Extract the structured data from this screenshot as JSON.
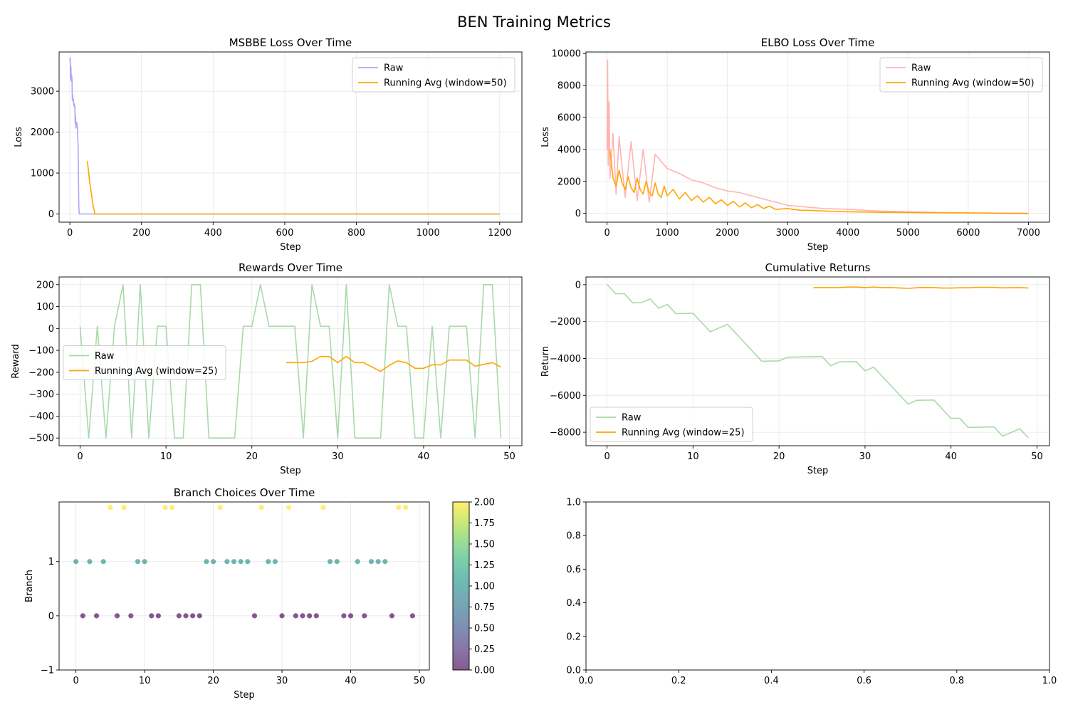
{
  "suptitle": "BEN Training Metrics",
  "colors": {
    "raw_blue": "#8c8cf0",
    "avg": "#ffa500",
    "raw_red": "#ff8c8c",
    "raw_green": "#8ccc8c",
    "grid": "#e6e6e6",
    "viridis": [
      "#440154",
      "#21918c",
      "#fde725"
    ]
  },
  "chart_data": [
    {
      "type": "line",
      "title": "MSBBE Loss Over Time",
      "xlabel": "Step",
      "ylabel": "Loss",
      "xlim": [
        -30,
        1262
      ],
      "ylim": [
        -200,
        3960
      ],
      "xticks": [
        0,
        200,
        400,
        600,
        800,
        1000,
        1200
      ],
      "yticks": [
        0,
        1000,
        2000,
        3000
      ],
      "legend": "upper right",
      "grid": true,
      "series": [
        {
          "name": "Raw",
          "color": "#8c8cf0",
          "opacity": 0.75,
          "x": [
            0,
            1,
            2,
            3,
            4,
            5,
            6,
            7,
            8,
            9,
            10,
            11,
            12,
            13,
            14,
            15,
            16,
            17,
            18,
            19,
            20,
            21,
            22,
            23,
            24,
            25,
            26,
            1200
          ],
          "y": [
            3750,
            3820,
            3300,
            3600,
            3250,
            3400,
            3300,
            2800,
            2900,
            2750,
            2800,
            2650,
            2700,
            2600,
            2650,
            2200,
            2400,
            2100,
            2250,
            2150,
            2200,
            2100,
            1800,
            1700,
            900,
            200,
            0,
            0
          ]
        },
        {
          "name": "Running Avg (window=50)",
          "color": "#ffa500",
          "opacity": 1,
          "x": [
            49,
            55,
            60,
            65,
            70,
            1200
          ],
          "y": [
            1300,
            800,
            500,
            200,
            0,
            0
          ]
        }
      ]
    },
    {
      "type": "line",
      "title": "ELBO Loss Over Time",
      "xlabel": "Step",
      "ylabel": "Loss",
      "xlim": [
        -350,
        7350
      ],
      "ylim": [
        -550,
        10100
      ],
      "xticks": [
        0,
        1000,
        2000,
        3000,
        4000,
        5000,
        6000,
        7000
      ],
      "yticks": [
        0,
        2000,
        4000,
        6000,
        8000,
        10000
      ],
      "legend": "upper right",
      "grid": true,
      "series": [
        {
          "name": "Raw",
          "color": "#ff8c8c",
          "opacity": 0.65,
          "x": [
            0,
            10,
            20,
            35,
            50,
            100,
            150,
            200,
            300,
            400,
            500,
            600,
            700,
            800,
            1000,
            1200,
            1400,
            1600,
            1800,
            2000,
            2200,
            2400,
            2600,
            2800,
            3000,
            3300,
            3600,
            4000,
            4500,
            5000,
            5500,
            6000,
            6500,
            7000
          ],
          "y": [
            4000,
            9600,
            3000,
            7000,
            2200,
            5000,
            1200,
            4800,
            1000,
            4500,
            800,
            4000,
            700,
            3700,
            2800,
            2500,
            2100,
            1900,
            1600,
            1400,
            1300,
            1100,
            900,
            700,
            500,
            400,
            300,
            250,
            150,
            100,
            60,
            40,
            20,
            10
          ]
        },
        {
          "name": "Running Avg (window=50)",
          "color": "#ffa500",
          "opacity": 1,
          "x": [
            49,
            100,
            150,
            200,
            250,
            300,
            350,
            400,
            450,
            500,
            550,
            600,
            650,
            700,
            750,
            800,
            850,
            900,
            950,
            1000,
            1100,
            1200,
            1300,
            1400,
            1500,
            1600,
            1700,
            1800,
            1900,
            2000,
            2100,
            2200,
            2300,
            2400,
            2500,
            2600,
            2700,
            2800,
            3000,
            3200,
            3400,
            3600,
            3800,
            4000,
            4500,
            5000,
            5500,
            6000,
            6500,
            7000
          ],
          "y": [
            4000,
            2200,
            1700,
            2700,
            1900,
            1500,
            2300,
            1600,
            1300,
            2200,
            1500,
            1200,
            2000,
            1300,
            1100,
            1900,
            1200,
            1000,
            1700,
            1100,
            1500,
            900,
            1300,
            800,
            1100,
            700,
            1000,
            600,
            850,
            500,
            750,
            400,
            650,
            350,
            550,
            300,
            450,
            250,
            300,
            200,
            180,
            150,
            120,
            100,
            70,
            50,
            30,
            20,
            0,
            -20
          ]
        }
      ]
    },
    {
      "type": "line",
      "title": "Rewards Over Time",
      "xlabel": "Step",
      "ylabel": "Reward",
      "xlim": [
        -2.45,
        51.45
      ],
      "ylim": [
        -535,
        235
      ],
      "xticks": [
        0,
        10,
        20,
        30,
        40,
        50
      ],
      "yticks": [
        -500,
        -400,
        -300,
        -200,
        -100,
        0,
        100,
        200
      ],
      "legend": "center left",
      "grid": true,
      "series": [
        {
          "name": "Raw",
          "color": "#8ccc8c",
          "opacity": 0.75,
          "x": [
            0,
            1,
            2,
            3,
            4,
            5,
            6,
            7,
            8,
            9,
            10,
            11,
            12,
            13,
            14,
            15,
            16,
            17,
            18,
            19,
            20,
            21,
            22,
            23,
            24,
            25,
            26,
            27,
            28,
            29,
            30,
            31,
            32,
            33,
            34,
            35,
            36,
            37,
            38,
            39,
            40,
            41,
            42,
            43,
            44,
            45,
            46,
            47,
            48,
            49
          ],
          "y": [
            10,
            -500,
            10,
            -500,
            10,
            200,
            -500,
            200,
            -500,
            10,
            10,
            -500,
            -500,
            200,
            200,
            -500,
            -500,
            -500,
            -500,
            10,
            10,
            200,
            10,
            10,
            10,
            10,
            -500,
            200,
            10,
            10,
            -500,
            200,
            -500,
            -500,
            -500,
            -500,
            200,
            10,
            10,
            -500,
            -500,
            10,
            -500,
            10,
            10,
            10,
            -500,
            200,
            200,
            -500
          ]
        },
        {
          "name": "Running Avg (window=25)",
          "color": "#ffa500",
          "opacity": 1,
          "x": [
            24,
            25,
            26,
            27,
            28,
            29,
            30,
            31,
            32,
            33,
            34,
            35,
            36,
            37,
            38,
            39,
            40,
            41,
            42,
            43,
            44,
            45,
            46,
            47,
            48,
            49
          ],
          "y": [
            -156,
            -156,
            -156,
            -150,
            -128,
            -128,
            -156,
            -128,
            -156,
            -156,
            -176,
            -196,
            -168,
            -148,
            -156,
            -182,
            -182,
            -166,
            -166,
            -144,
            -144,
            -144,
            -172,
            -164,
            -156,
            -176
          ]
        }
      ]
    },
    {
      "type": "line",
      "title": "Cumulative Returns",
      "xlabel": "Step",
      "ylabel": "Return",
      "xlim": [
        -2.45,
        51.45
      ],
      "ylim": [
        -8730,
        420
      ],
      "xticks": [
        0,
        10,
        20,
        30,
        40,
        50
      ],
      "yticks": [
        -8000,
        -6000,
        -4000,
        -2000,
        0
      ],
      "legend": "lower left",
      "grid": true,
      "series": [
        {
          "name": "Raw",
          "color": "#8ccc8c",
          "opacity": 0.75,
          "x": [
            0,
            1,
            2,
            3,
            4,
            5,
            6,
            7,
            8,
            9,
            10,
            11,
            12,
            13,
            14,
            15,
            16,
            17,
            18,
            19,
            20,
            21,
            22,
            23,
            24,
            25,
            26,
            27,
            28,
            29,
            30,
            31,
            32,
            33,
            34,
            35,
            36,
            37,
            38,
            39,
            40,
            41,
            42,
            43,
            44,
            45,
            46,
            47,
            48,
            49
          ],
          "y": [
            10,
            -490,
            -480,
            -980,
            -970,
            -770,
            -1270,
            -1070,
            -1570,
            -1560,
            -1550,
            -2050,
            -2550,
            -2350,
            -2150,
            -2650,
            -3150,
            -3650,
            -4150,
            -4140,
            -4130,
            -3930,
            -3920,
            -3910,
            -3900,
            -3890,
            -4390,
            -4190,
            -4180,
            -4170,
            -4670,
            -4470,
            -4970,
            -5470,
            -5970,
            -6470,
            -6270,
            -6260,
            -6250,
            -6750,
            -7250,
            -7240,
            -7740,
            -7730,
            -7720,
            -7710,
            -8210,
            -8010,
            -7810,
            -8310
          ]
        },
        {
          "name": "Running Avg (window=25)",
          "color": "#ffa500",
          "opacity": 1,
          "x": [
            24,
            25,
            26,
            27,
            28,
            29,
            30,
            31,
            32,
            33,
            34,
            35,
            36,
            37,
            38,
            39,
            40,
            41,
            42,
            43,
            44,
            45,
            46,
            47,
            48,
            49
          ],
          "y": [
            -156,
            -156,
            -156,
            -150,
            -128,
            -128,
            -156,
            -128,
            -156,
            -156,
            -176,
            -196,
            -168,
            -148,
            -156,
            -182,
            -182,
            -166,
            -166,
            -144,
            -144,
            -144,
            -172,
            -164,
            -156,
            -176
          ]
        }
      ]
    },
    {
      "type": "scatter",
      "title": "Branch Choices Over Time",
      "xlabel": "Step",
      "ylabel": "Branch",
      "xlim": [
        -2.45,
        51.45
      ],
      "ylim": [
        -1,
        2.1
      ],
      "xticks": [
        0,
        10,
        20,
        30,
        40,
        50
      ],
      "yticks": [
        -1,
        0,
        1
      ],
      "grid": true,
      "colorbar": {
        "min": 0,
        "max": 2,
        "ticks": [
          "0.00",
          "0.25",
          "0.50",
          "0.75",
          "1.00",
          "1.25",
          "1.50",
          "1.75",
          "2.00"
        ],
        "colormap": "viridis"
      },
      "x": [
        0,
        1,
        2,
        3,
        4,
        5,
        6,
        7,
        8,
        9,
        10,
        11,
        12,
        13,
        14,
        15,
        16,
        17,
        18,
        19,
        20,
        21,
        22,
        23,
        24,
        25,
        26,
        27,
        28,
        29,
        30,
        31,
        32,
        33,
        34,
        35,
        36,
        37,
        38,
        39,
        40,
        41,
        42,
        43,
        44,
        45,
        46,
        47,
        48,
        49
      ],
      "y": [
        1,
        0,
        1,
        0,
        1,
        2,
        0,
        2,
        0,
        1,
        1,
        0,
        0,
        2,
        2,
        0,
        0,
        0,
        0,
        1,
        1,
        2,
        1,
        1,
        1,
        1,
        0,
        2,
        1,
        1,
        0,
        2,
        0,
        0,
        0,
        0,
        2,
        1,
        1,
        0,
        0,
        1,
        0,
        1,
        1,
        1,
        0,
        2,
        2,
        0
      ]
    },
    {
      "type": "line",
      "title": "",
      "xlabel": "",
      "ylabel": "",
      "xlim": [
        0,
        1
      ],
      "ylim": [
        0,
        1
      ],
      "xticks": [
        "0.0",
        "0.2",
        "0.4",
        "0.6",
        "0.8",
        "1.0"
      ],
      "yticks": [
        "0.0",
        "0.2",
        "0.4",
        "0.6",
        "0.8",
        "1.0"
      ],
      "grid": false,
      "series": []
    }
  ]
}
